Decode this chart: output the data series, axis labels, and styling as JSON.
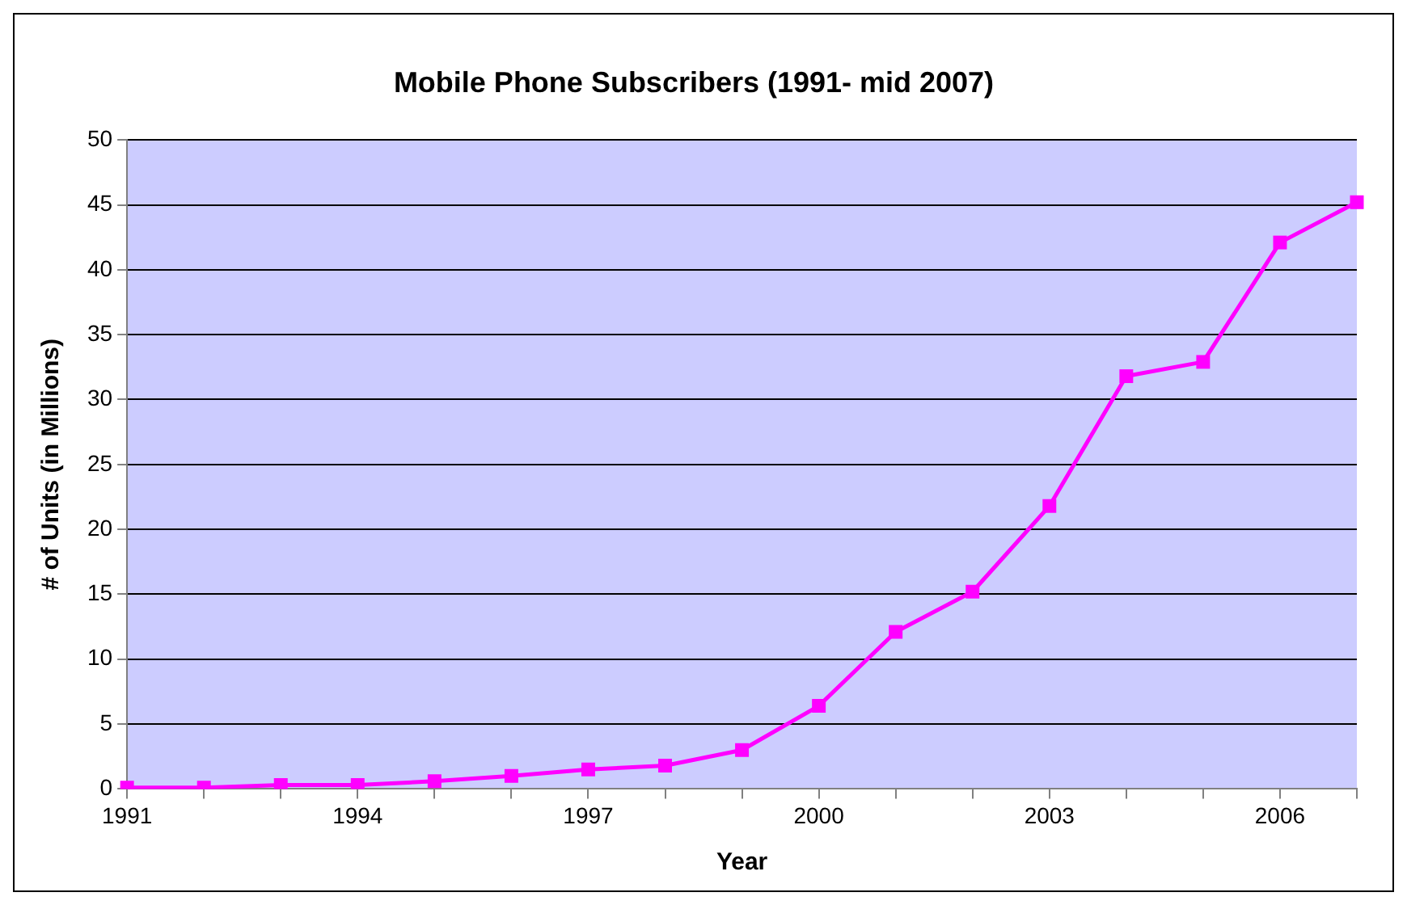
{
  "chart_data": {
    "type": "line",
    "title": "Mobile Phone Subscribers (1991- mid 2007)",
    "xlabel": "Year",
    "ylabel": "# of Units (in Millions)",
    "categories": [
      "1991",
      null,
      null,
      "1994",
      null,
      null,
      "1997",
      null,
      null,
      "2000",
      null,
      null,
      "2003",
      null,
      null,
      "2006",
      null
    ],
    "series": [
      {
        "color": "#ff00ff",
        "values": [
          0.1,
          0.1,
          0.3,
          0.3,
          0.6,
          1.0,
          1.5,
          1.8,
          3.0,
          6.4,
          12.1,
          15.2,
          21.8,
          31.8,
          32.9,
          42.1,
          45.2
        ]
      }
    ],
    "ylim": [
      0,
      50
    ],
    "yticks": [
      0,
      5,
      10,
      15,
      20,
      25,
      30,
      35,
      40,
      45,
      50
    ],
    "grid": "y",
    "legend": false,
    "marker": "square",
    "line_style": "solid"
  }
}
